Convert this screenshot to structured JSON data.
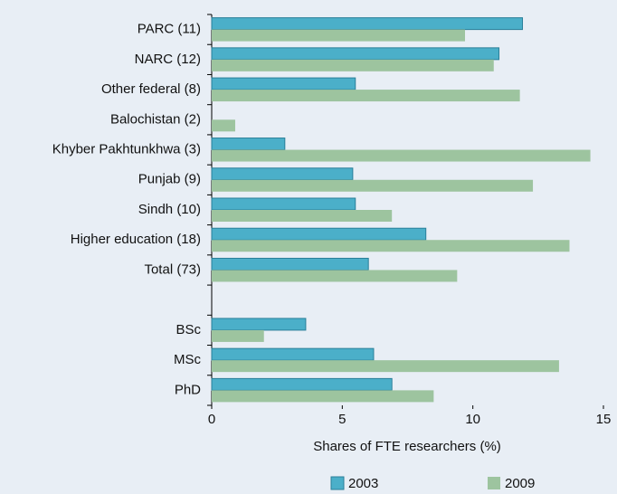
{
  "chart_data": {
    "type": "hbar",
    "categories": [
      "PARC (11)",
      "NARC (12)",
      "Other federal (8)",
      "Balochistan (2)",
      "Khyber Pakhtunkhwa (3)",
      "Punjab (9)",
      "Sindh (10)",
      "Higher education  (18)",
      "Total (73)",
      null,
      "BSc",
      "MSc",
      "PhD"
    ],
    "series": [
      {
        "name": "2003",
        "color": "#4bafc9",
        "values": [
          11.9,
          11.0,
          5.5,
          null,
          2.8,
          5.4,
          5.5,
          8.2,
          6.0,
          null,
          3.6,
          6.2,
          6.9
        ]
      },
      {
        "name": "2009",
        "color": "#9dc49f",
        "values": [
          9.7,
          10.8,
          11.8,
          0.9,
          14.5,
          12.3,
          6.9,
          13.7,
          9.4,
          null,
          2.0,
          13.3,
          8.5
        ]
      }
    ],
    "xlabel": "Shares of FTE researchers (%)",
    "xlim": [
      0,
      15
    ],
    "xticks": [
      0,
      5,
      10,
      15
    ],
    "legend": "bottom"
  }
}
